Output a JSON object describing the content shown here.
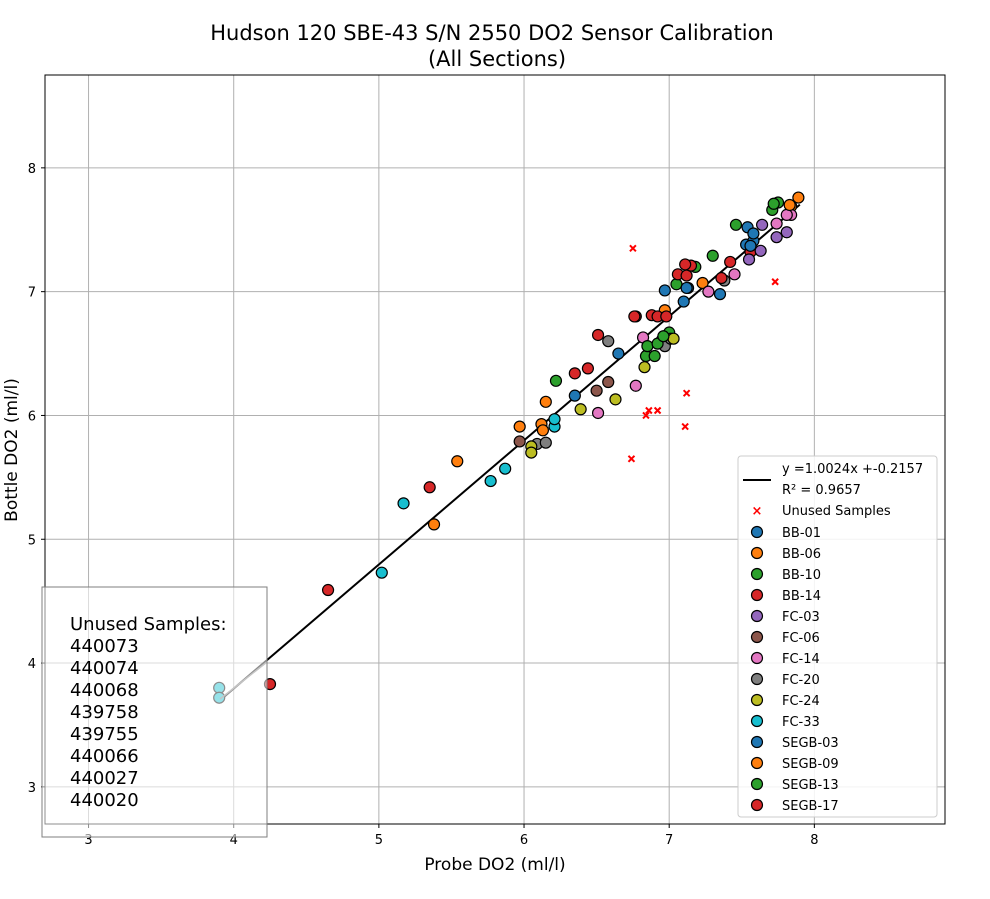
{
  "chart_data": {
    "type": "scatter",
    "title": "Hudson 120 SBE-43 S/N 2550 DO2 Sensor Calibration",
    "subtitle": "(All Sections)",
    "xlabel": "Probe DO2 (ml/l)",
    "ylabel": "Bottle DO2 (ml/l)",
    "xlim": [
      2.7,
      8.9
    ],
    "ylim": [
      2.7,
      8.75
    ],
    "xticks": [
      "3",
      "4",
      "5",
      "6",
      "7",
      "8"
    ],
    "yticks": [
      "3",
      "4",
      "5",
      "6",
      "7",
      "8"
    ],
    "grid": true,
    "legend_position": "lower-right",
    "fit": {
      "label": "y =1.0024x +-0.2157",
      "r2_label": "R² = 0.9657",
      "slope": 1.0024,
      "intercept": -0.2157,
      "x_range": [
        3.9,
        7.9
      ],
      "color": "#000000"
    },
    "unused_samples": {
      "name": "Unused Samples",
      "color": "#ff0000",
      "points": [
        [
          6.75,
          7.35
        ],
        [
          7.73,
          7.08
        ],
        [
          7.12,
          6.18
        ],
        [
          6.84,
          6.0
        ],
        [
          6.86,
          6.04
        ],
        [
          6.92,
          6.04
        ],
        [
          7.11,
          5.91
        ],
        [
          6.74,
          5.65
        ]
      ]
    },
    "unused_box": {
      "heading": "Unused Samples:",
      "ids": [
        "440073",
        "440074",
        "440068",
        "439758",
        "439755",
        "440066",
        "440027",
        "440020"
      ]
    },
    "series": [
      {
        "name": "BB-01",
        "color": "#1f77b4",
        "points": [
          [
            6.65,
            6.5
          ],
          [
            7.1,
            6.92
          ],
          [
            7.13,
            7.03
          ],
          [
            7.35,
            6.98
          ],
          [
            7.53,
            7.38
          ],
          [
            7.58,
            7.41
          ],
          [
            6.97,
            7.01
          ]
        ]
      },
      {
        "name": "BB-06",
        "color": "#ff7f0e",
        "points": [
          [
            5.38,
            5.12
          ],
          [
            5.54,
            5.63
          ],
          [
            5.97,
            5.91
          ],
          [
            6.12,
            5.93
          ],
          [
            6.13,
            5.88
          ],
          [
            6.15,
            6.11
          ],
          [
            6.97,
            6.85
          ],
          [
            7.23,
            7.07
          ],
          [
            7.84,
            7.69
          ]
        ]
      },
      {
        "name": "BB-10",
        "color": "#2ca02c",
        "points": [
          [
            6.22,
            6.28
          ],
          [
            6.84,
            6.48
          ],
          [
            6.9,
            6.48
          ],
          [
            6.95,
            6.61
          ],
          [
            7.0,
            6.67
          ],
          [
            7.05,
            7.06
          ],
          [
            7.18,
            7.2
          ],
          [
            7.3,
            7.29
          ],
          [
            7.46,
            7.54
          ],
          [
            7.71,
            7.66
          ],
          [
            7.75,
            7.72
          ]
        ]
      },
      {
        "name": "BB-14",
        "color": "#d62728",
        "points": [
          [
            4.65,
            4.59
          ],
          [
            5.35,
            5.42
          ],
          [
            6.35,
            6.34
          ],
          [
            6.44,
            6.38
          ],
          [
            6.51,
            6.65
          ],
          [
            6.77,
            6.8
          ],
          [
            6.88,
            6.81
          ],
          [
            7.06,
            7.14
          ],
          [
            7.12,
            7.13
          ],
          [
            7.15,
            7.21
          ],
          [
            7.42,
            7.24
          ],
          [
            7.56,
            7.32
          ]
        ]
      },
      {
        "name": "FC-03",
        "color": "#9467bd",
        "points": [
          [
            7.55,
            7.26
          ],
          [
            7.63,
            7.33
          ],
          [
            7.74,
            7.44
          ],
          [
            7.81,
            7.48
          ],
          [
            7.64,
            7.54
          ]
        ]
      },
      {
        "name": "FC-06",
        "color": "#8c564b",
        "points": [
          [
            5.97,
            5.79
          ],
          [
            6.5,
            6.2
          ],
          [
            6.58,
            6.27
          ]
        ]
      },
      {
        "name": "FC-14",
        "color": "#e377c2",
        "points": [
          [
            6.51,
            6.02
          ],
          [
            6.77,
            6.24
          ],
          [
            6.82,
            6.63
          ],
          [
            7.27,
            7.0
          ],
          [
            7.45,
            7.14
          ],
          [
            7.74,
            7.55
          ],
          [
            7.84,
            7.62
          ],
          [
            7.81,
            7.62
          ]
        ]
      },
      {
        "name": "FC-20",
        "color": "#7f7f7f",
        "points": [
          [
            6.09,
            5.77
          ],
          [
            6.15,
            5.78
          ],
          [
            6.58,
            6.6
          ],
          [
            6.98,
            6.6
          ],
          [
            6.97,
            6.56
          ],
          [
            7.01,
            6.62
          ],
          [
            7.38,
            7.09
          ]
        ]
      },
      {
        "name": "FC-24",
        "color": "#bcbd22",
        "points": [
          [
            6.05,
            5.75
          ],
          [
            6.05,
            5.7
          ],
          [
            6.39,
            6.05
          ],
          [
            6.63,
            6.13
          ],
          [
            6.83,
            6.39
          ],
          [
            7.03,
            6.62
          ]
        ]
      },
      {
        "name": "FC-33",
        "color": "#17becf",
        "points": [
          [
            3.9,
            3.8
          ],
          [
            3.9,
            3.72
          ],
          [
            5.02,
            4.73
          ],
          [
            5.17,
            5.29
          ],
          [
            5.77,
            5.47
          ],
          [
            5.87,
            5.57
          ],
          [
            6.21,
            5.91
          ],
          [
            6.21,
            5.97
          ]
        ]
      },
      {
        "name": "SEGB-03",
        "color": "#1f77b4",
        "points": [
          [
            6.35,
            6.16
          ],
          [
            7.12,
            7.03
          ],
          [
            7.56,
            7.37
          ],
          [
            7.54,
            7.52
          ],
          [
            7.58,
            7.47
          ]
        ]
      },
      {
        "name": "SEGB-09",
        "color": "#ff7f0e",
        "points": [
          [
            7.89,
            7.76
          ],
          [
            7.83,
            7.7
          ]
        ]
      },
      {
        "name": "SEGB-13",
        "color": "#2ca02c",
        "points": [
          [
            6.85,
            6.56
          ],
          [
            6.92,
            6.58
          ],
          [
            6.96,
            6.64
          ],
          [
            7.72,
            7.71
          ]
        ]
      },
      {
        "name": "SEGB-17",
        "color": "#d62728",
        "points": [
          [
            4.25,
            3.83
          ],
          [
            6.76,
            6.8
          ],
          [
            6.92,
            6.8
          ],
          [
            6.98,
            6.8
          ],
          [
            7.11,
            7.22
          ],
          [
            7.36,
            7.11
          ]
        ]
      }
    ]
  }
}
